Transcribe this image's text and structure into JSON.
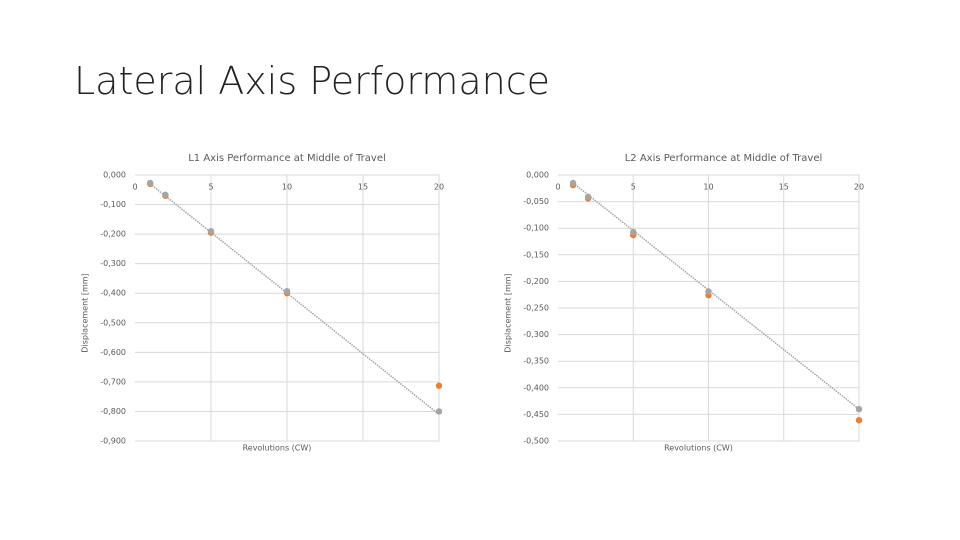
{
  "slide_title": "Lateral Axis Performance",
  "chart_data": [
    {
      "type": "scatter",
      "title": "L1 Axis Performance at Middle of Travel",
      "x_label": "Revolutions (CW)",
      "y_label": "Displacement [mm]",
      "xlim": [
        0,
        20
      ],
      "xticks": [
        0,
        5,
        10,
        15,
        20
      ],
      "ylim": [
        -0.9,
        0
      ],
      "yticks": [
        {
          "value": 0,
          "label": "0,000"
        },
        {
          "value": -0.1,
          "label": "-0,100"
        },
        {
          "value": -0.2,
          "label": "-0,200"
        },
        {
          "value": -0.3,
          "label": "-0,300"
        },
        {
          "value": -0.4,
          "label": "-0,400"
        },
        {
          "value": -0.5,
          "label": "-0,500"
        },
        {
          "value": -0.6,
          "label": "-0,600"
        },
        {
          "value": -0.7,
          "label": "-0,700"
        },
        {
          "value": -0.8,
          "label": "-0,800"
        },
        {
          "value": -0.9,
          "label": "-0,900"
        }
      ],
      "grid": true,
      "series": [
        {
          "color": "#ed7d31",
          "x": [
            1,
            2,
            5,
            10,
            20
          ],
          "values": [
            -0.03,
            -0.07,
            -0.195,
            -0.4,
            -0.713
          ]
        },
        {
          "color": "#a5a5a5",
          "x": [
            1,
            2,
            5,
            10,
            20
          ],
          "values": [
            -0.027,
            -0.067,
            -0.19,
            -0.393,
            -0.8
          ]
        },
        {
          "color": "#a5a5a5",
          "style": "dotted",
          "x": [
            1,
            20
          ],
          "values": [
            -0.03,
            -0.81
          ]
        }
      ]
    },
    {
      "type": "scatter",
      "title": "L2 Axis Performance at Middle of Travel",
      "x_label": "Revolutions (CW)",
      "y_label": "Displacement [mm]",
      "xlim": [
        0,
        20
      ],
      "xticks": [
        0,
        5,
        10,
        15,
        20
      ],
      "ylim": [
        -0.5,
        0
      ],
      "yticks": [
        {
          "value": 0,
          "label": "0,000"
        },
        {
          "value": -0.05,
          "label": "-0,050"
        },
        {
          "value": -0.1,
          "label": "-0,100"
        },
        {
          "value": -0.15,
          "label": "-0,150"
        },
        {
          "value": -0.2,
          "label": "-0,200"
        },
        {
          "value": -0.25,
          "label": "-0,250"
        },
        {
          "value": -0.3,
          "label": "-0,300"
        },
        {
          "value": -0.35,
          "label": "-0,350"
        },
        {
          "value": -0.4,
          "label": "-0,400"
        },
        {
          "value": -0.45,
          "label": "-0,450"
        },
        {
          "value": -0.5,
          "label": "-0,500"
        }
      ],
      "grid": true,
      "series": [
        {
          "color": "#ed7d31",
          "x": [
            1,
            2,
            5,
            10,
            20
          ],
          "values": [
            -0.019,
            -0.044,
            -0.113,
            -0.226,
            -0.461
          ]
        },
        {
          "color": "#a5a5a5",
          "x": [
            1,
            2,
            5,
            10,
            20
          ],
          "values": [
            -0.015,
            -0.041,
            -0.107,
            -0.219,
            -0.44
          ]
        },
        {
          "color": "#a5a5a5",
          "style": "dotted",
          "x": [
            1,
            20
          ],
          "values": [
            -0.015,
            -0.44
          ]
        }
      ]
    }
  ]
}
